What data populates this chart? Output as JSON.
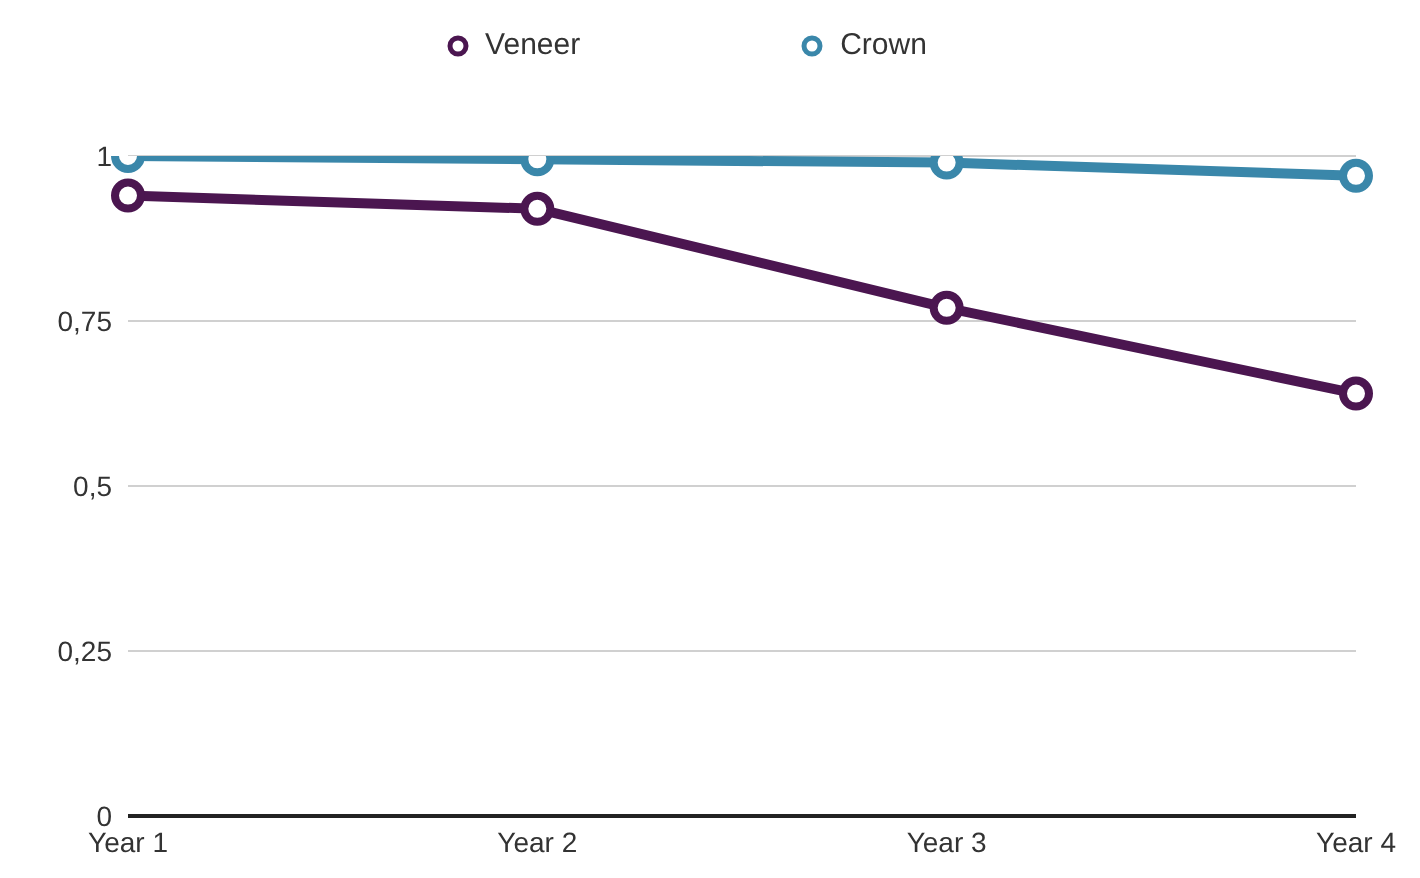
{
  "chart_data": {
    "type": "line",
    "categories": [
      "Year 1",
      "Year 2",
      "Year 3",
      "Year 4"
    ],
    "series": [
      {
        "name": "Veneer",
        "color": "#4b1650",
        "values": [
          0.94,
          0.92,
          0.77,
          0.64
        ]
      },
      {
        "name": "Crown",
        "color": "#3a87aa",
        "values": [
          1,
          0.995,
          0.99,
          0.97
        ]
      }
    ],
    "ylim": [
      0,
      1
    ],
    "yticks": [
      0,
      {
        "value": 0.25,
        "label": "0,25"
      },
      {
        "value": 0.5,
        "label": "0,5"
      },
      {
        "value": 0.75,
        "label": "0,75"
      },
      1
    ],
    "grid": "y",
    "legend": "top",
    "marker": "circle",
    "line_style": "solid"
  }
}
